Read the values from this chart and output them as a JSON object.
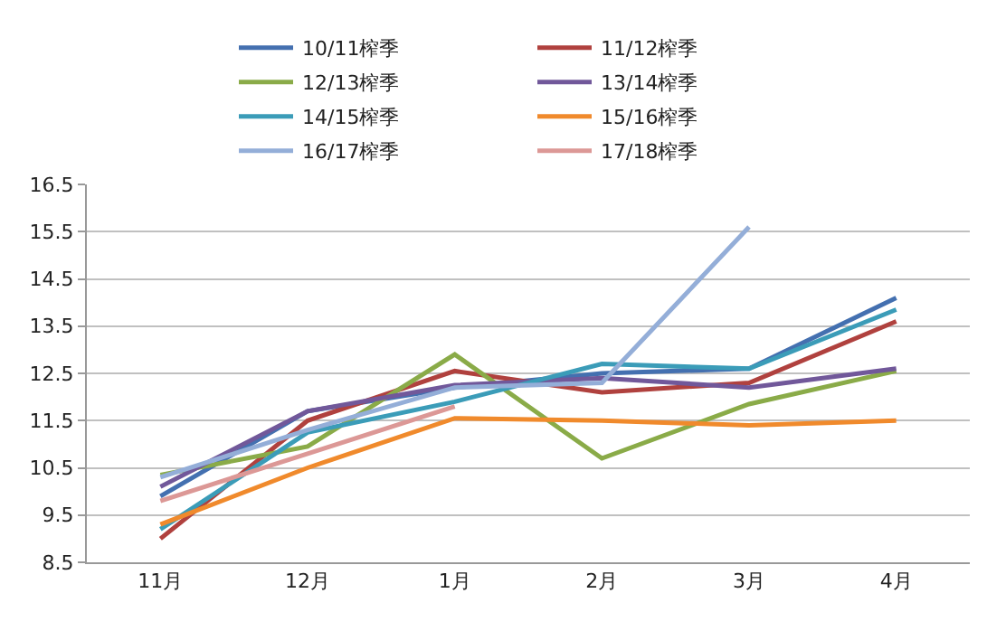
{
  "chart_data": {
    "type": "line",
    "categories": [
      "11月",
      "12月",
      "1月",
      "2月",
      "3月",
      "4月"
    ],
    "series": [
      {
        "name": "10/11榨季",
        "color": "#4470b0",
        "values": [
          9.9,
          11.7,
          12.2,
          12.5,
          12.6,
          14.1
        ]
      },
      {
        "name": "11/12榨季",
        "color": "#b0413e",
        "values": [
          9.0,
          11.5,
          12.55,
          12.1,
          12.3,
          13.6
        ]
      },
      {
        "name": "12/13榨季",
        "color": "#8aab48",
        "values": [
          10.35,
          10.95,
          12.9,
          10.7,
          11.85,
          12.55
        ]
      },
      {
        "name": "13/14榨季",
        "color": "#71589a",
        "values": [
          10.1,
          11.7,
          12.25,
          12.4,
          12.2,
          12.6
        ]
      },
      {
        "name": "14/15榨季",
        "color": "#3b9cb8",
        "values": [
          9.2,
          11.25,
          11.9,
          12.7,
          12.6,
          13.85
        ]
      },
      {
        "name": "15/16榨季",
        "color": "#f08a2c",
        "values": [
          9.3,
          10.5,
          11.55,
          11.5,
          11.4,
          11.5
        ]
      },
      {
        "name": "16/17榨季",
        "color": "#94aed8",
        "values": [
          10.3,
          11.3,
          12.2,
          12.3,
          15.6,
          null
        ]
      },
      {
        "name": "17/18榨季",
        "color": "#dc9896",
        "values": [
          9.8,
          10.8,
          11.8,
          null,
          null,
          null
        ]
      }
    ],
    "ylim": [
      8.5,
      16.5
    ],
    "yticks": [
      8.5,
      9.5,
      10.5,
      11.5,
      12.5,
      13.5,
      14.5,
      15.5,
      16.5
    ],
    "grid": "y",
    "legend": "top",
    "marker": "none",
    "line_style": "solid"
  }
}
